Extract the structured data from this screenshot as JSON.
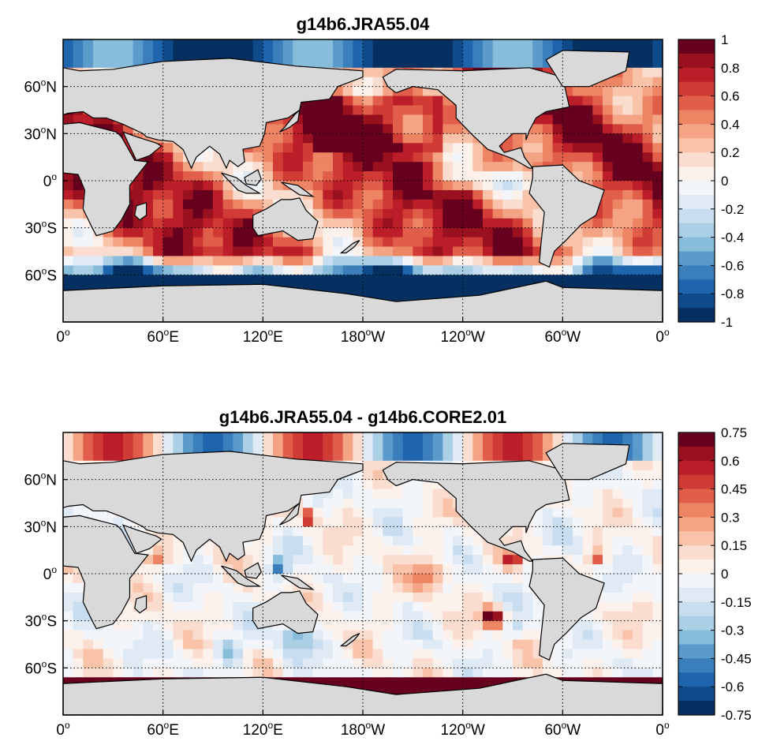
{
  "chart_data": [
    {
      "type": "heatmap",
      "title": "g14b6.JRA55.04",
      "projection": "global cylindrical map, 0 to 360 longitude",
      "x_ticks": [
        "0o",
        "60oE",
        "120oE",
        "180oW",
        "120oW",
        "60oW",
        "0o"
      ],
      "y_ticks": [
        "60oN",
        "30oN",
        "0o",
        "30oS",
        "60oS"
      ],
      "grid": "dotted",
      "colorbar": {
        "min": -1,
        "max": 1,
        "levels": 20,
        "tick_labels": [
          "1",
          "0.8",
          "0.6",
          "0.4",
          "0.2",
          "0",
          "-0.2",
          "-0.4",
          "-0.6",
          "-0.8",
          "-1"
        ]
      },
      "land_color": "#d9d9d9",
      "field_summary": "predominantly positive (red) over most oceans, strongest in North Pacific; negative (blue) bands near Antarctica and Arctic"
    },
    {
      "type": "heatmap",
      "title": "g14b6.JRA55.04 - g14b6.CORE2.01",
      "projection": "global cylindrical map, 0 to 360 longitude",
      "x_ticks": [
        "0o",
        "60oE",
        "120oE",
        "180oW",
        "120oW",
        "60oW",
        "0o"
      ],
      "y_ticks": [
        "60oN",
        "30oN",
        "0o",
        "30oS",
        "60oS"
      ],
      "grid": "dotted",
      "colorbar": {
        "min": -0.75,
        "max": 0.75,
        "levels": 20,
        "tick_labels": [
          "0.75",
          "0.6",
          "0.45",
          "0.3",
          "0.15",
          "0",
          "-0.15",
          "-0.3",
          "-0.45",
          "-0.6",
          "-0.75"
        ]
      },
      "land_color": "#d9d9d9",
      "field_summary": "mostly near zero; positive patches off Japan, eastern tropical Pacific, SE Pacific and Southern Ocean edge; negative patches in West Pacific and Southern Ocean"
    }
  ],
  "colors": {
    "palette": [
      "#053061",
      "#0f4b8a",
      "#1f65ad",
      "#3a7fbc",
      "#5a9bcb",
      "#87bcdb",
      "#abcfe5",
      "#c8def0",
      "#dfeaf5",
      "#f2f6fb",
      "#fdf1ec",
      "#fbddd0",
      "#f9c3aa",
      "#f4a484",
      "#ed8463",
      "#e15f4a",
      "#d03b35",
      "#bb1e28",
      "#99101f",
      "#67001f"
    ],
    "land": "#d9d9d9",
    "coast": "#000000"
  }
}
